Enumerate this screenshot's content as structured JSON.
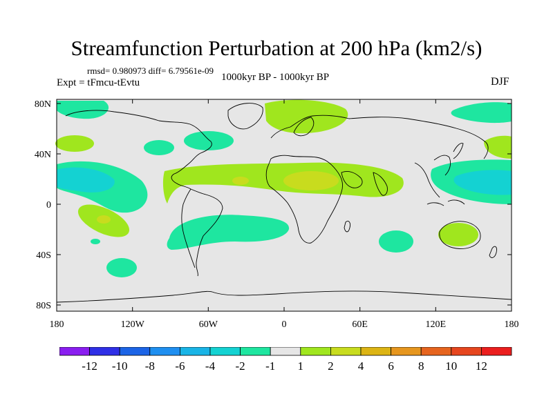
{
  "title": "Streamfunction Perturbation at 200 hPa (km2/s)",
  "stats_line": "rmsd= 0.980973 diff= 6.79561e-09",
  "experiment": "Expt = tFmcu-tEvtu",
  "period": "1000kyr BP - 1000kyr BP",
  "season": "DJF",
  "map": {
    "lat_ticks": [
      "80N",
      "40N",
      "0",
      "40S",
      "80S"
    ],
    "lon_ticks": [
      "180",
      "120W",
      "60W",
      "0",
      "60E",
      "120E",
      "180"
    ],
    "ocean_color": "#e6e6e6",
    "coast_color": "#000000"
  },
  "colorbar": {
    "labels": [
      "-12",
      "-10",
      "-8",
      "-6",
      "-4",
      "-2",
      "-1",
      "1",
      "2",
      "4",
      "6",
      "8",
      "10",
      "12"
    ],
    "colors": [
      "#8a1ef0",
      "#2f2fe6",
      "#1c64e6",
      "#1f8ff0",
      "#19b4e6",
      "#14d2d2",
      "#1ee6a0",
      "#e6e6e6",
      "#a0e61e",
      "#c8dc1e",
      "#dcb414",
      "#e6961e",
      "#e6641e",
      "#e6461e",
      "#eb1e1e"
    ]
  }
}
